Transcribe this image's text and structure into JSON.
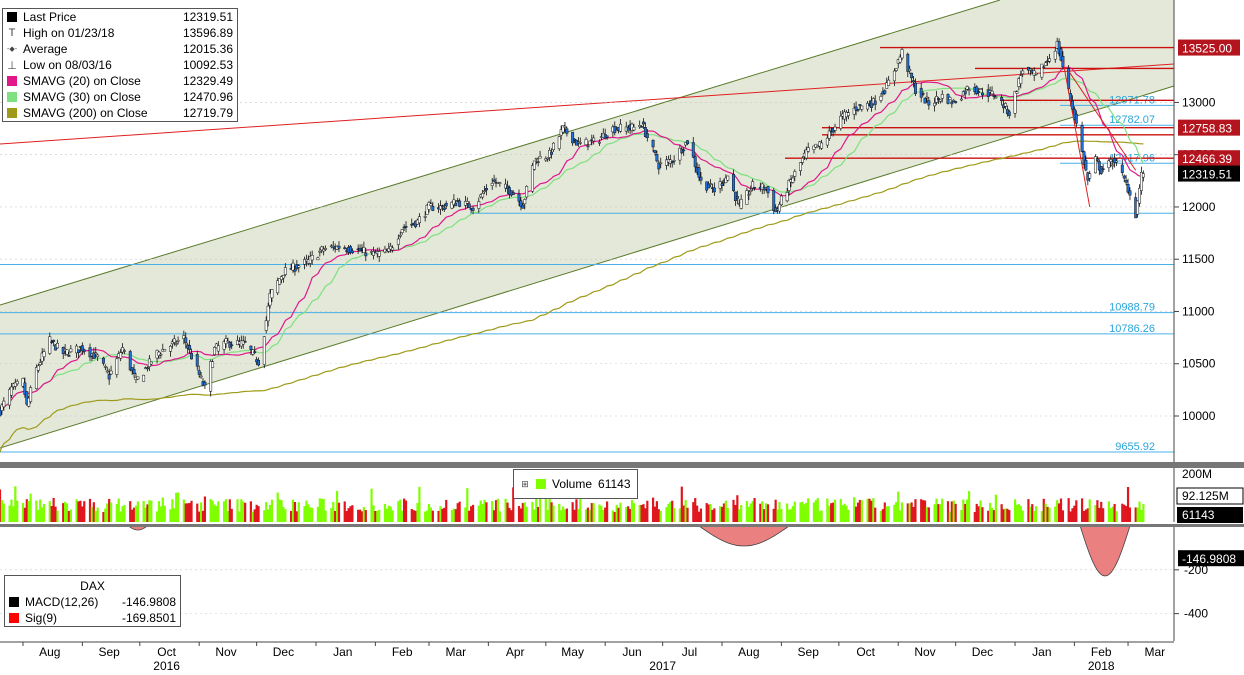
{
  "chart_data": {
    "type": "line",
    "title": "DAX",
    "main_legend": [
      {
        "label": "Last Price",
        "value": "12319.51",
        "marker": "square",
        "color": "#000000"
      },
      {
        "label": "High on 01/23/18",
        "value": "13596.89",
        "marker": "high",
        "color": "#444444"
      },
      {
        "label": "Average",
        "value": "12015.36",
        "marker": "avg",
        "color": "#444444"
      },
      {
        "label": "Low on 08/03/16",
        "value": "10092.53",
        "marker": "low",
        "color": "#444444"
      },
      {
        "label": "SMAVG (20) on Close",
        "value": "12329.49",
        "marker": "square",
        "color": "#e0188c"
      },
      {
        "label": "SMAVG (30) on Close",
        "value": "12470.96",
        "marker": "square",
        "color": "#7fe07f"
      },
      {
        "label": "SMAVG (200) on Close",
        "value": "12719.79",
        "marker": "square",
        "color": "#a09a1a"
      }
    ],
    "price_axis": {
      "ticks": [
        "10000",
        "10500",
        "11000",
        "11500",
        "12000",
        "12500",
        "13000"
      ],
      "ylim": [
        9560,
        13980
      ]
    },
    "price_keypoints": [
      {
        "date": "2016-07-20",
        "close": 10050
      },
      {
        "date": "2016-07-26",
        "close": 10260
      },
      {
        "date": "2016-08-01",
        "close": 10330
      },
      {
        "date": "2016-08-03",
        "close": 10092.53
      },
      {
        "date": "2016-08-08",
        "close": 10450
      },
      {
        "date": "2016-08-15",
        "close": 10720
      },
      {
        "date": "2016-08-22",
        "close": 10600
      },
      {
        "date": "2016-09-01",
        "close": 10650
      },
      {
        "date": "2016-09-09",
        "close": 10560
      },
      {
        "date": "2016-09-15",
        "close": 10380
      },
      {
        "date": "2016-09-22",
        "close": 10650
      },
      {
        "date": "2016-09-29",
        "close": 10330
      },
      {
        "date": "2016-10-10",
        "close": 10600
      },
      {
        "date": "2016-10-24",
        "close": 10750
      },
      {
        "date": "2016-11-04",
        "close": 10260
      },
      {
        "date": "2016-11-09",
        "close": 10640
      },
      {
        "date": "2016-11-15",
        "close": 10700
      },
      {
        "date": "2016-11-25",
        "close": 10690
      },
      {
        "date": "2016-12-02",
        "close": 10520
      },
      {
        "date": "2016-12-05",
        "close": 10800
      },
      {
        "date": "2016-12-08",
        "close": 11150
      },
      {
        "date": "2016-12-15",
        "close": 11380
      },
      {
        "date": "2016-12-28",
        "close": 11480
      },
      {
        "date": "2017-01-05",
        "close": 11600
      },
      {
        "date": "2017-01-13",
        "close": 11620
      },
      {
        "date": "2017-01-24",
        "close": 11580
      },
      {
        "date": "2017-01-31",
        "close": 11550
      },
      {
        "date": "2017-02-08",
        "close": 11570
      },
      {
        "date": "2017-02-15",
        "close": 11800
      },
      {
        "date": "2017-02-23",
        "close": 11860
      },
      {
        "date": "2017-03-01",
        "close": 12000
      },
      {
        "date": "2017-03-08",
        "close": 12000
      },
      {
        "date": "2017-03-16",
        "close": 12050
      },
      {
        "date": "2017-03-24",
        "close": 12000
      },
      {
        "date": "2017-04-03",
        "close": 12250
      },
      {
        "date": "2017-04-13",
        "close": 12150
      },
      {
        "date": "2017-04-19",
        "close": 12020
      },
      {
        "date": "2017-04-25",
        "close": 12450
      },
      {
        "date": "2017-05-03",
        "close": 12500
      },
      {
        "date": "2017-05-10",
        "close": 12750
      },
      {
        "date": "2017-05-18",
        "close": 12600
      },
      {
        "date": "2017-05-26",
        "close": 12620
      },
      {
        "date": "2017-06-05",
        "close": 12750
      },
      {
        "date": "2017-06-16",
        "close": 12760
      },
      {
        "date": "2017-06-20",
        "close": 12800
      },
      {
        "date": "2017-06-29",
        "close": 12400
      },
      {
        "date": "2017-07-06",
        "close": 12450
      },
      {
        "date": "2017-07-14",
        "close": 12630
      },
      {
        "date": "2017-07-21",
        "close": 12240
      },
      {
        "date": "2017-07-28",
        "close": 12160
      },
      {
        "date": "2017-08-04",
        "close": 12300
      },
      {
        "date": "2017-08-10",
        "close": 12000
      },
      {
        "date": "2017-08-17",
        "close": 12200
      },
      {
        "date": "2017-08-24",
        "close": 12180
      },
      {
        "date": "2017-08-29",
        "close": 11950
      },
      {
        "date": "2017-09-06",
        "close": 12250
      },
      {
        "date": "2017-09-14",
        "close": 12520
      },
      {
        "date": "2017-09-22",
        "close": 12600
      },
      {
        "date": "2017-10-02",
        "close": 12850
      },
      {
        "date": "2017-10-10",
        "close": 12950
      },
      {
        "date": "2017-10-19",
        "close": 13000
      },
      {
        "date": "2017-10-26",
        "close": 13150
      },
      {
        "date": "2017-11-03",
        "close": 13480
      },
      {
        "date": "2017-11-10",
        "close": 13120
      },
      {
        "date": "2017-11-17",
        "close": 12990
      },
      {
        "date": "2017-11-24",
        "close": 13060
      },
      {
        "date": "2017-11-30",
        "close": 13000
      },
      {
        "date": "2017-12-08",
        "close": 13150
      },
      {
        "date": "2017-12-15",
        "close": 13100
      },
      {
        "date": "2017-12-22",
        "close": 13070
      },
      {
        "date": "2017-12-29",
        "close": 12900
      },
      {
        "date": "2018-01-05",
        "close": 13320
      },
      {
        "date": "2018-01-12",
        "close": 13250
      },
      {
        "date": "2018-01-19",
        "close": 13430
      },
      {
        "date": "2018-01-23",
        "close": 13560
      },
      {
        "date": "2018-01-26",
        "close": 13340
      },
      {
        "date": "2018-02-02",
        "close": 12790
      },
      {
        "date": "2018-02-08",
        "close": 12250
      },
      {
        "date": "2018-02-12",
        "close": 12450
      },
      {
        "date": "2018-02-15",
        "close": 12350
      },
      {
        "date": "2018-02-22",
        "close": 12450
      },
      {
        "date": "2018-03-01",
        "close": 12180
      },
      {
        "date": "2018-03-05",
        "close": 11930
      },
      {
        "date": "2018-03-08",
        "close": 12300
      },
      {
        "date": "2018-03-09",
        "close": 12319.51
      }
    ],
    "right_labels": [
      {
        "value": 13525.0,
        "text": "13525.00",
        "style": "red-box"
      },
      {
        "value": 12758.83,
        "text": "12758.83",
        "style": "red-box"
      },
      {
        "value": 12466.39,
        "text": "12466.39",
        "style": "red-box"
      },
      {
        "value": 12319.51,
        "text": "12319.51",
        "style": "black-box"
      }
    ],
    "level_labels": [
      {
        "value": 12971.78,
        "text": "12971.78"
      },
      {
        "value": 12782.07,
        "text": "12782.07"
      },
      {
        "value": 12417.96,
        "text": "12417.96"
      },
      {
        "value": 10988.79,
        "text": "10988.79"
      },
      {
        "value": 10786.26,
        "text": "10786.26"
      },
      {
        "value": 9655.92,
        "text": "9655.92"
      }
    ],
    "volume": {
      "label": "Volume",
      "value": "61143",
      "axis_labels": [
        "200M",
        "92.125M",
        "61143"
      ]
    },
    "macd": {
      "title": "DAX",
      "legend": [
        {
          "label": "MACD(12,26)",
          "value": "-146.9808",
          "color": "#000000"
        },
        {
          "label": "Sig(9)",
          "value": "-169.8501",
          "color": "#ff0000"
        }
      ],
      "ticks": [
        "-200",
        "-400"
      ],
      "current_label": "-146.9808",
      "ylim": [
        -525,
        0
      ]
    },
    "x_axis": {
      "months": [
        "Aug",
        "Sep",
        "Oct",
        "Nov",
        "Dec",
        "Jan",
        "Feb",
        "Mar",
        "Apr",
        "May",
        "Jun",
        "Jul",
        "Aug",
        "Sep",
        "Oct",
        "Nov",
        "Dec",
        "Jan",
        "Feb",
        "Mar"
      ],
      "years": [
        "2016",
        "2017",
        "2018"
      ],
      "range": [
        "2016-07-20",
        "2018-03-25"
      ]
    }
  }
}
